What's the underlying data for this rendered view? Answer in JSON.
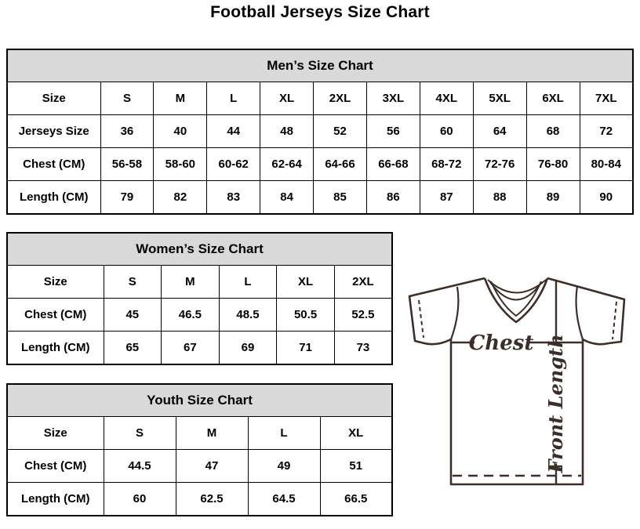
{
  "page_title": "Football Jerseys Size Chart",
  "tables": [
    {
      "id": "mens",
      "title": "Men’s Size Chart",
      "rows": [
        [
          "Size",
          "S",
          "M",
          "L",
          "XL",
          "2XL",
          "3XL",
          "4XL",
          "5XL",
          "6XL",
          "7XL"
        ],
        [
          "Jerseys Size",
          "36",
          "40",
          "44",
          "48",
          "52",
          "56",
          "60",
          "64",
          "68",
          "72"
        ],
        [
          "Chest (CM)",
          "56-58",
          "58-60",
          "60-62",
          "62-64",
          "64-66",
          "66-68",
          "68-72",
          "72-76",
          "76-80",
          "80-84"
        ],
        [
          "Length (CM)",
          "79",
          "82",
          "83",
          "84",
          "85",
          "86",
          "87",
          "88",
          "89",
          "90"
        ]
      ]
    },
    {
      "id": "womens",
      "title": "Women’s Size Chart",
      "rows": [
        [
          "Size",
          "S",
          "M",
          "L",
          "XL",
          "2XL"
        ],
        [
          "Chest (CM)",
          "45",
          "46.5",
          "48.5",
          "50.5",
          "52.5"
        ],
        [
          "Length (CM)",
          "65",
          "67",
          "69",
          "71",
          "73"
        ]
      ]
    },
    {
      "id": "youth",
      "title": "Youth Size Chart",
      "rows": [
        [
          "Size",
          "S",
          "M",
          "L",
          "XL"
        ],
        [
          "Chest (CM)",
          "44.5",
          "47",
          "49",
          "51"
        ],
        [
          "Length (CM)",
          "60",
          "62.5",
          "64.5",
          "66.5"
        ]
      ]
    }
  ],
  "diagram": {
    "chest_label": "Chest",
    "front_length_label": "Front Length",
    "stroke_color": "#3a2f2b"
  },
  "colors": {
    "table_header_bg": "#d9d9d9",
    "border": "#000000",
    "text": "#000000"
  }
}
